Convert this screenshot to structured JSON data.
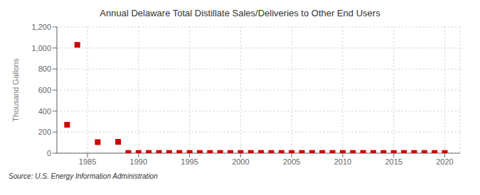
{
  "chart_data": {
    "type": "scatter",
    "title": "Annual Delaware Total Distillate Sales/Deliveries to Other End Users",
    "ylabel": "Thousand Gallons",
    "source": "Source: U.S. Energy Information Administration",
    "x": [
      1983,
      1984,
      1986,
      1988,
      1989,
      1990,
      1991,
      1992,
      1993,
      1994,
      1995,
      1996,
      1997,
      1998,
      1999,
      2000,
      2001,
      2002,
      2003,
      2004,
      2005,
      2006,
      2007,
      2008,
      2009,
      2010,
      2011,
      2012,
      2013,
      2014,
      2015,
      2016,
      2017,
      2018,
      2019,
      2020
    ],
    "values": [
      270,
      1030,
      105,
      108,
      2,
      2,
      2,
      2,
      2,
      2,
      2,
      2,
      2,
      2,
      2,
      2,
      2,
      2,
      2,
      2,
      2,
      2,
      2,
      2,
      2,
      2,
      2,
      2,
      2,
      2,
      2,
      2,
      2,
      2,
      2,
      2
    ],
    "color": "#cc0000",
    "marker": "square",
    "xlim": [
      1982,
      2021.5
    ],
    "ylim": [
      0,
      1200
    ],
    "xticks": [
      1985,
      1990,
      1995,
      2000,
      2005,
      2010,
      2015,
      2020
    ],
    "yticks": [
      0,
      200,
      400,
      600,
      800,
      {
        "value": 1000,
        "label": "1,000"
      },
      {
        "value": 1200,
        "label": "1,200"
      }
    ],
    "grid": true
  }
}
